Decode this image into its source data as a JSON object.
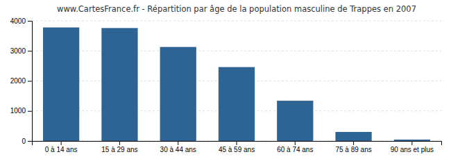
{
  "chart_data": {
    "type": "bar",
    "title": "www.CartesFrance.fr - Répartition par âge de la population masculine de Trappes en 2007",
    "categories": [
      "0 à 14 ans",
      "15 à 29 ans",
      "30 à 44 ans",
      "45 à 59 ans",
      "60 à 74 ans",
      "75 à 89 ans",
      "90 ans et plus"
    ],
    "values": [
      3780,
      3760,
      3130,
      2460,
      1340,
      300,
      45
    ],
    "color": "#2e6494",
    "ylim": [
      0,
      4000
    ],
    "yticks": [
      0,
      1000,
      2000,
      3000,
      4000
    ],
    "grid": true
  }
}
